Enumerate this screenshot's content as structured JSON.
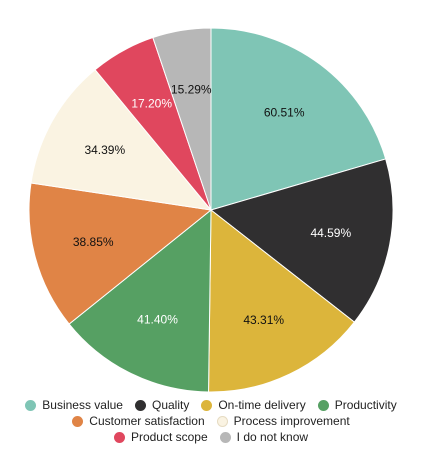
{
  "chart_data": {
    "type": "pie",
    "title": "",
    "start_angle_deg": 0,
    "direction": "clockwise",
    "slices": [
      {
        "label": "Business value",
        "value": 60.51,
        "display": "60.51%",
        "color": "#7fc5b5",
        "text_color": "#111111"
      },
      {
        "label": "Quality",
        "value": 44.59,
        "display": "44.59%",
        "color": "#302f30",
        "text_color": "#ffffff"
      },
      {
        "label": "On-time delivery",
        "value": 43.31,
        "display": "43.31%",
        "color": "#dcb53b",
        "text_color": "#111111"
      },
      {
        "label": "Productivity",
        "value": 41.4,
        "display": "41.40%",
        "color": "#56a063",
        "text_color": "#ffffff"
      },
      {
        "label": "Customer satisfaction",
        "value": 38.85,
        "display": "38.85%",
        "color": "#e08446",
        "text_color": "#111111"
      },
      {
        "label": "Process improvement",
        "value": 34.39,
        "display": "34.39%",
        "color": "#faf3e2",
        "text_color": "#111111"
      },
      {
        "label": "Product scope",
        "value": 17.2,
        "display": "17.20%",
        "color": "#e0475e",
        "text_color": "#ffffff"
      },
      {
        "label": "I do not know",
        "value": 15.29,
        "display": "15.29%",
        "color": "#b7b7b7",
        "text_color": "#111111"
      }
    ],
    "legend": {
      "position": "bottom",
      "rows": [
        [
          "Business value",
          "Quality",
          "On-time delivery",
          "Productivity"
        ],
        [
          "Customer satisfaction",
          "Process improvement"
        ],
        [
          "Product scope",
          "I do not know"
        ]
      ]
    }
  }
}
